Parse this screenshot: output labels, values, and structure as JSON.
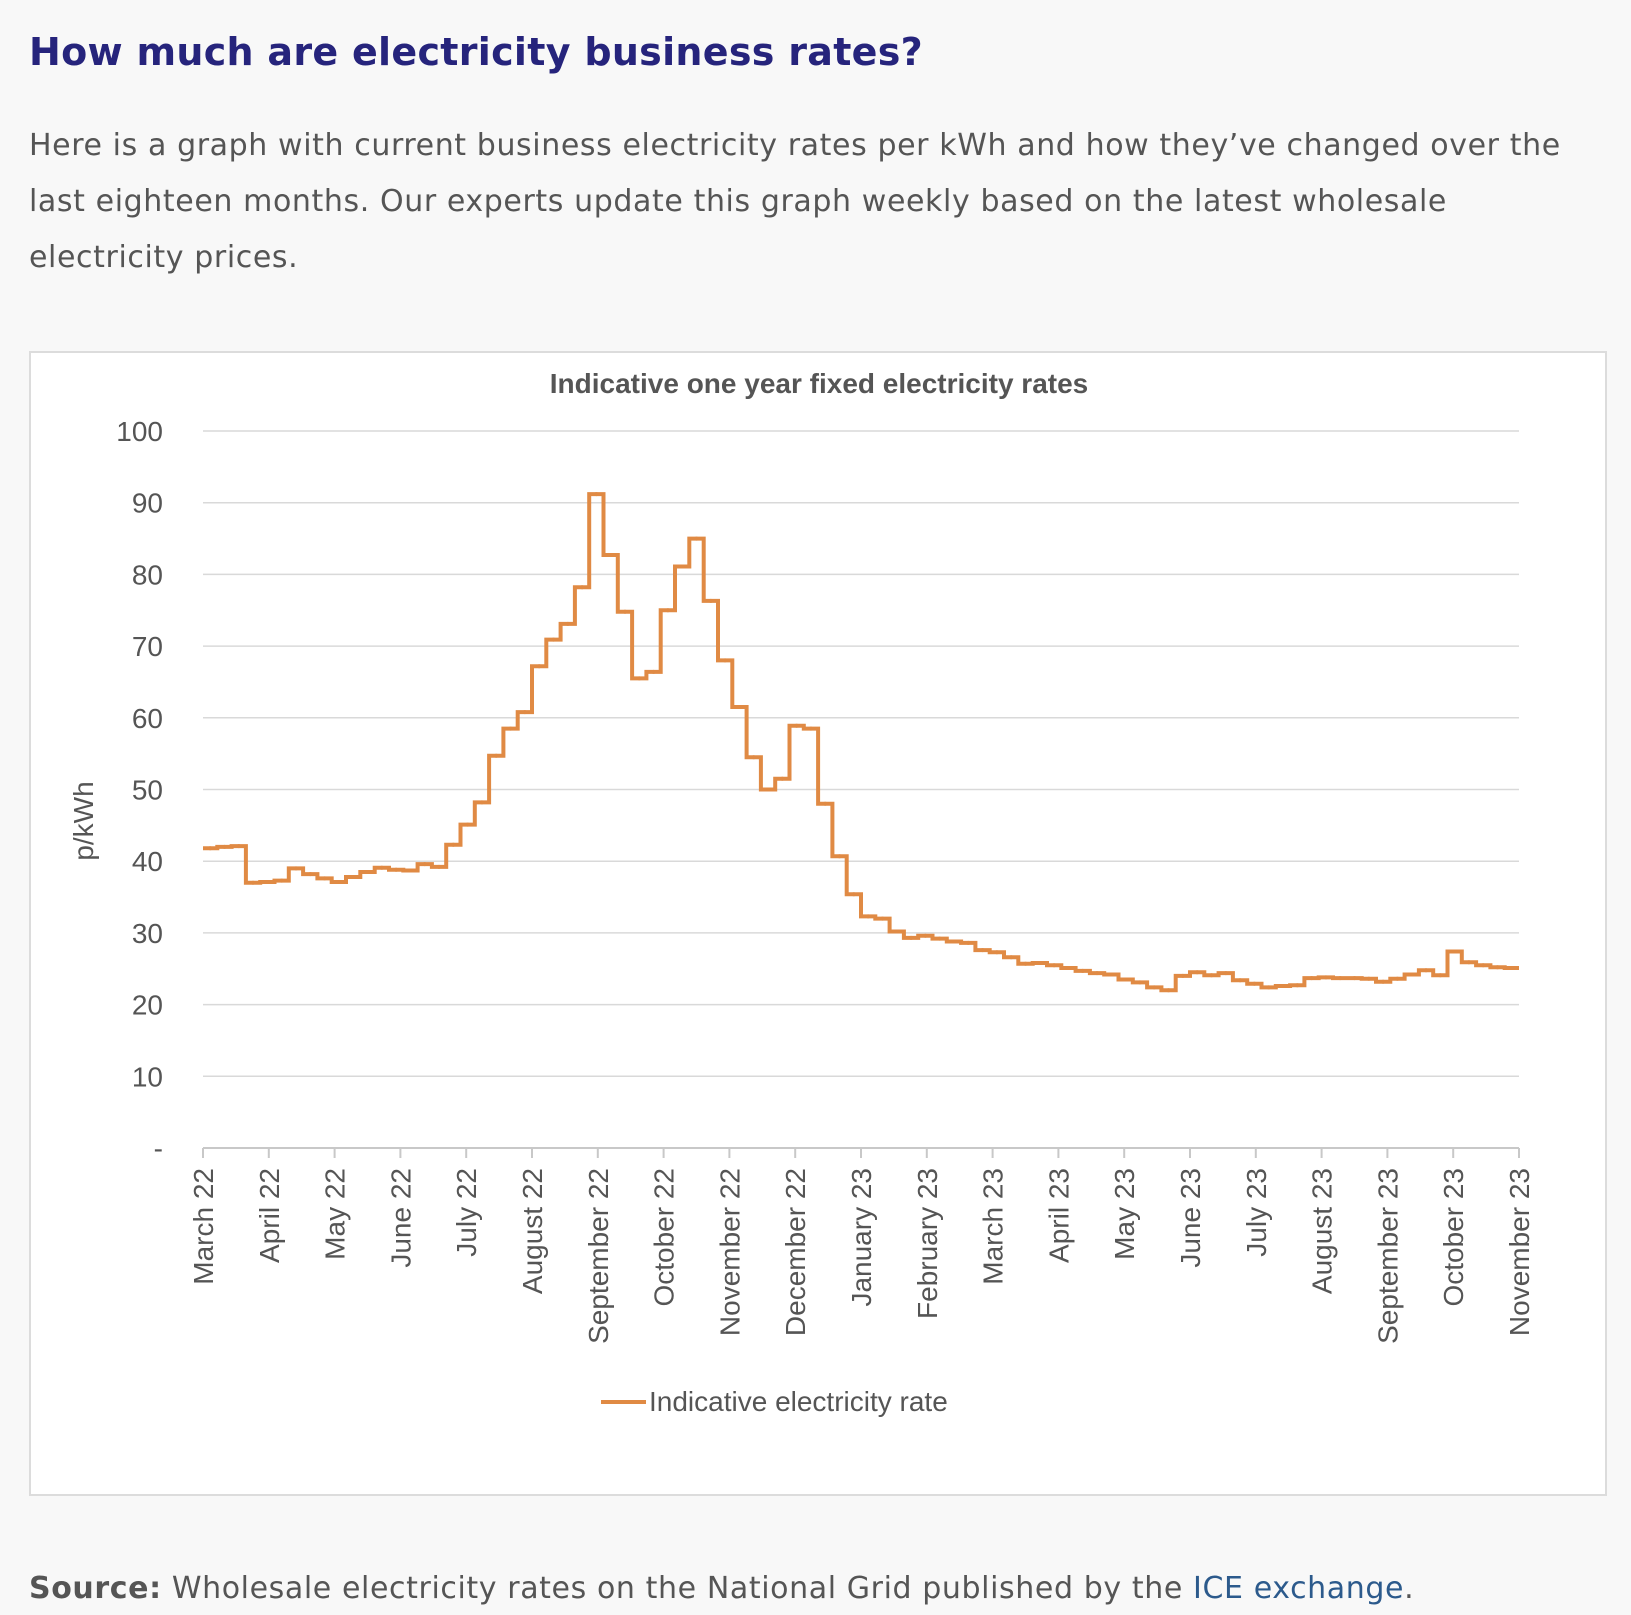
{
  "heading": "How much are electricity business rates?",
  "intro": "Here is a graph with current business electricity rates per kWh and how they’ve changed over the last eighteen months. Our experts update this graph weekly based on the latest wholesale electricity prices.",
  "source": {
    "label": "Source:",
    "text": " Wholesale electricity rates on the National Grid published by the ",
    "link_text": "ICE exchange",
    "end": "."
  },
  "colors": {
    "heading": "#26247c",
    "line": "#e08a44",
    "link": "#2c5a8c",
    "grid": "#d9d9d9"
  },
  "chart_data": {
    "type": "line",
    "title": "Indicative one year fixed electricity rates",
    "ylabel": "p/kWh",
    "xlabel": "",
    "ylim": [
      0,
      100
    ],
    "y_ticks": [
      {
        "value": 0,
        "label": "-"
      },
      {
        "value": 10,
        "label": "10"
      },
      {
        "value": 20,
        "label": "20"
      },
      {
        "value": 30,
        "label": "30"
      },
      {
        "value": 40,
        "label": "40"
      },
      {
        "value": 50,
        "label": "50"
      },
      {
        "value": 60,
        "label": "60"
      },
      {
        "value": 70,
        "label": "70"
      },
      {
        "value": 80,
        "label": "80"
      },
      {
        "value": 90,
        "label": "90"
      },
      {
        "value": 100,
        "label": "100"
      }
    ],
    "x_ticks": [
      "March 22",
      "April 22",
      "May 22",
      "June 22",
      "July 22",
      "August 22",
      "September 22",
      "October 22",
      "November 22",
      "December 22",
      "January 23",
      "February 23",
      "March 23",
      "April 23",
      "May 23",
      "June 23",
      "July 23",
      "August 23",
      "September 23",
      "October 23",
      "November 23"
    ],
    "grid": true,
    "legend": "bottom",
    "step": true,
    "series": [
      {
        "name": "Indicative electricity rate",
        "values": [
          41.8,
          42.0,
          42.1,
          37.0,
          37.1,
          37.3,
          39.0,
          38.2,
          37.6,
          37.1,
          37.8,
          38.5,
          39.1,
          38.8,
          38.7,
          39.6,
          39.2,
          42.3,
          45.1,
          48.2,
          54.7,
          58.5,
          60.8,
          67.2,
          70.9,
          73.1,
          78.2,
          91.2,
          82.7,
          74.8,
          65.5,
          66.4,
          75.0,
          81.1,
          85.0,
          76.3,
          68.0,
          61.5,
          54.5,
          50.0,
          51.5,
          58.9,
          58.5,
          48.0,
          40.7,
          35.4,
          32.3,
          32.0,
          30.2,
          29.3,
          29.6,
          29.2,
          28.8,
          28.6,
          27.6,
          27.3,
          26.6,
          25.7,
          25.8,
          25.5,
          25.1,
          24.7,
          24.4,
          24.2,
          23.5,
          23.1,
          22.4,
          22.0,
          24.0,
          24.5,
          24.1,
          24.4,
          23.4,
          22.9,
          22.4,
          22.6,
          22.7,
          23.7,
          23.8,
          23.7,
          23.7,
          23.6,
          23.2,
          23.6,
          24.2,
          24.8,
          24.1,
          27.4,
          25.9,
          25.5,
          25.2,
          25.1
        ]
      }
    ]
  }
}
